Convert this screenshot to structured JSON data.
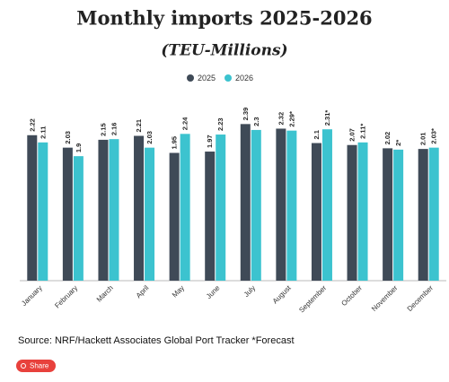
{
  "chart_data": {
    "type": "bar",
    "title": "Monthly imports 2025-2026",
    "subtitle": "(TEU-Millions)",
    "categories": [
      "January",
      "February",
      "March",
      "April",
      "May",
      "June",
      "July",
      "August",
      "September",
      "October",
      "November",
      "December"
    ],
    "series": [
      {
        "name": "2025",
        "color": "#3f4a57",
        "values": [
          2.22,
          2.03,
          2.15,
          2.21,
          1.95,
          1.97,
          2.39,
          2.32,
          2.1,
          2.07,
          2.02,
          2.01
        ]
      },
      {
        "name": "2026",
        "color": "#3cc3cf",
        "values": [
          2.11,
          1.9,
          2.16,
          2.03,
          2.24,
          2.23,
          2.3,
          2.29,
          2.31,
          2.11,
          2,
          2.03
        ],
        "value_labels": [
          "2.11",
          "1.9",
          "2.16",
          "2.03",
          "2.24",
          "2.23",
          "2.3",
          "2.29*",
          "2.31*",
          "2.11*",
          "2*",
          "2.03*"
        ]
      }
    ],
    "ylim": [
      0,
      2.6
    ],
    "legend": "top",
    "source": "Source: NRF/Hackett Associates Global Port Tracker    *Forecast"
  },
  "share_button": "Share"
}
